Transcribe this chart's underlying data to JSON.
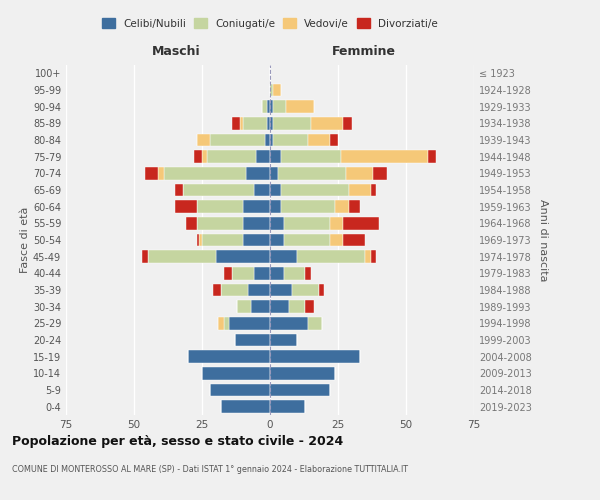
{
  "age_groups_bottom_to_top": [
    "0-4",
    "5-9",
    "10-14",
    "15-19",
    "20-24",
    "25-29",
    "30-34",
    "35-39",
    "40-44",
    "45-49",
    "50-54",
    "55-59",
    "60-64",
    "65-69",
    "70-74",
    "75-79",
    "80-84",
    "85-89",
    "90-94",
    "95-99",
    "100+"
  ],
  "birth_years_bottom_to_top": [
    "2019-2023",
    "2014-2018",
    "2009-2013",
    "2004-2008",
    "1999-2003",
    "1994-1998",
    "1989-1993",
    "1984-1988",
    "1979-1983",
    "1974-1978",
    "1969-1973",
    "1964-1968",
    "1959-1963",
    "1954-1958",
    "1949-1953",
    "1944-1948",
    "1939-1943",
    "1934-1938",
    "1929-1933",
    "1924-1928",
    "≤ 1923"
  ],
  "colors": {
    "celibe": "#3e6e9e",
    "coniugato": "#c5d5a0",
    "vedovo": "#f5c878",
    "divorziato": "#c8271e"
  },
  "maschi": {
    "celibe": [
      18,
      22,
      25,
      30,
      13,
      15,
      7,
      8,
      6,
      20,
      10,
      10,
      10,
      6,
      9,
      5,
      2,
      1,
      1,
      0,
      0
    ],
    "coniugato": [
      0,
      0,
      0,
      0,
      0,
      2,
      5,
      10,
      8,
      25,
      15,
      17,
      17,
      26,
      30,
      18,
      20,
      9,
      2,
      0,
      0
    ],
    "vedovo": [
      0,
      0,
      0,
      0,
      0,
      2,
      0,
      0,
      0,
      0,
      1,
      0,
      0,
      0,
      2,
      2,
      5,
      1,
      0,
      0,
      0
    ],
    "divorziato": [
      0,
      0,
      0,
      0,
      0,
      0,
      0,
      3,
      3,
      2,
      1,
      4,
      8,
      3,
      5,
      3,
      0,
      3,
      0,
      0,
      0
    ]
  },
  "femmine": {
    "celibe": [
      13,
      22,
      24,
      33,
      10,
      14,
      7,
      8,
      5,
      10,
      5,
      5,
      4,
      4,
      3,
      4,
      1,
      1,
      1,
      0,
      0
    ],
    "coniugato": [
      0,
      0,
      0,
      0,
      0,
      5,
      6,
      10,
      8,
      25,
      17,
      17,
      20,
      25,
      25,
      22,
      13,
      14,
      5,
      1,
      0
    ],
    "vedovo": [
      0,
      0,
      0,
      0,
      0,
      0,
      0,
      0,
      0,
      2,
      5,
      5,
      5,
      8,
      10,
      32,
      8,
      12,
      10,
      3,
      0
    ],
    "divorziato": [
      0,
      0,
      0,
      0,
      0,
      0,
      3,
      2,
      2,
      2,
      8,
      13,
      4,
      2,
      5,
      3,
      3,
      3,
      0,
      0,
      0
    ]
  },
  "xlim": 75,
  "title": "Popolazione per età, sesso e stato civile - 2024",
  "subtitle": "COMUNE DI MONTEROSSO AL MARE (SP) - Dati ISTAT 1° gennaio 2024 - Elaborazione TUTTITALIA.IT",
  "ylabel_left": "Fasce di età",
  "ylabel_right": "Anni di nascita",
  "header_maschi": "Maschi",
  "header_femmine": "Femmine",
  "legend_labels": [
    "Celibi/Nubili",
    "Coniugati/e",
    "Vedovi/e",
    "Divorziati/e"
  ],
  "background_color": "#f0f0f0"
}
